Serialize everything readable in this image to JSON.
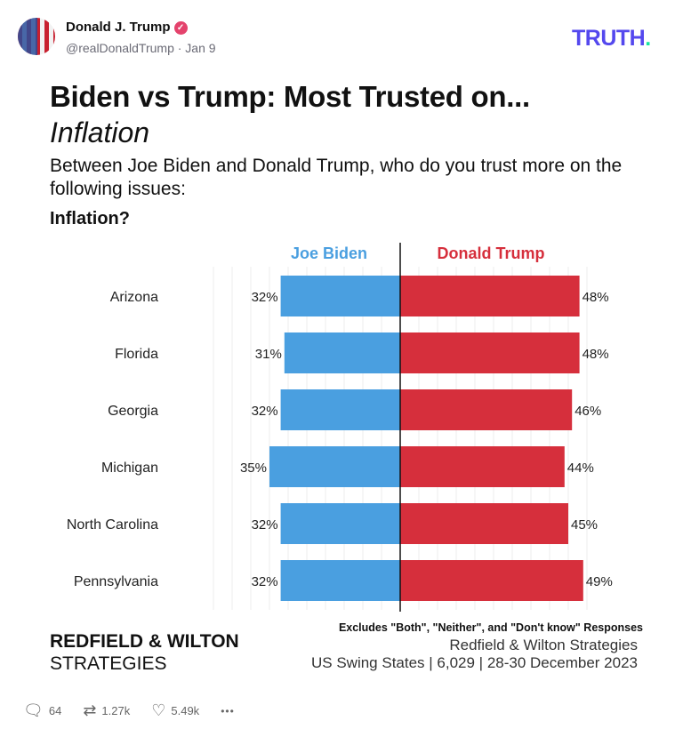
{
  "post": {
    "author": "Donald J. Trump",
    "handle": "@realDonaldTrump · Jan 9",
    "logo": "TRUTH",
    "logo_dot": ".",
    "verified_icon": "verified-badge-icon"
  },
  "image": {
    "title": "Biden vs Trump: Most Trusted on...",
    "subtitle": "Inflation",
    "question": "Between Joe Biden and Donald Trump, who do you trust more on the following issues:",
    "question2": "Inflation?",
    "brand_line1": "REDFIELD & WILTON",
    "brand_line2": "STRATEGIES",
    "excludes": "Excludes \"Both\", \"Neither\", and \"Don't know\" Responses",
    "source": "Redfield & Wilton Strategies",
    "sample": "US Swing States | 6,029 | 28-30 December 2023"
  },
  "chart_data": {
    "type": "bar",
    "orientation": "diverging-horizontal",
    "categories": [
      "Arizona",
      "Florida",
      "Georgia",
      "Michigan",
      "North Carolina",
      "Pennsylvania"
    ],
    "series": [
      {
        "name": "Joe Biden",
        "color": "#4a9fe0",
        "values": [
          32,
          31,
          32,
          35,
          32,
          32
        ]
      },
      {
        "name": "Donald Trump",
        "color": "#d62f3c",
        "values": [
          48,
          48,
          46,
          44,
          45,
          49
        ]
      }
    ],
    "unit": "%",
    "grid": true
  },
  "actions": {
    "replies": "64",
    "retruths": "1.27k",
    "likes": "5.49k",
    "more": "•••"
  }
}
